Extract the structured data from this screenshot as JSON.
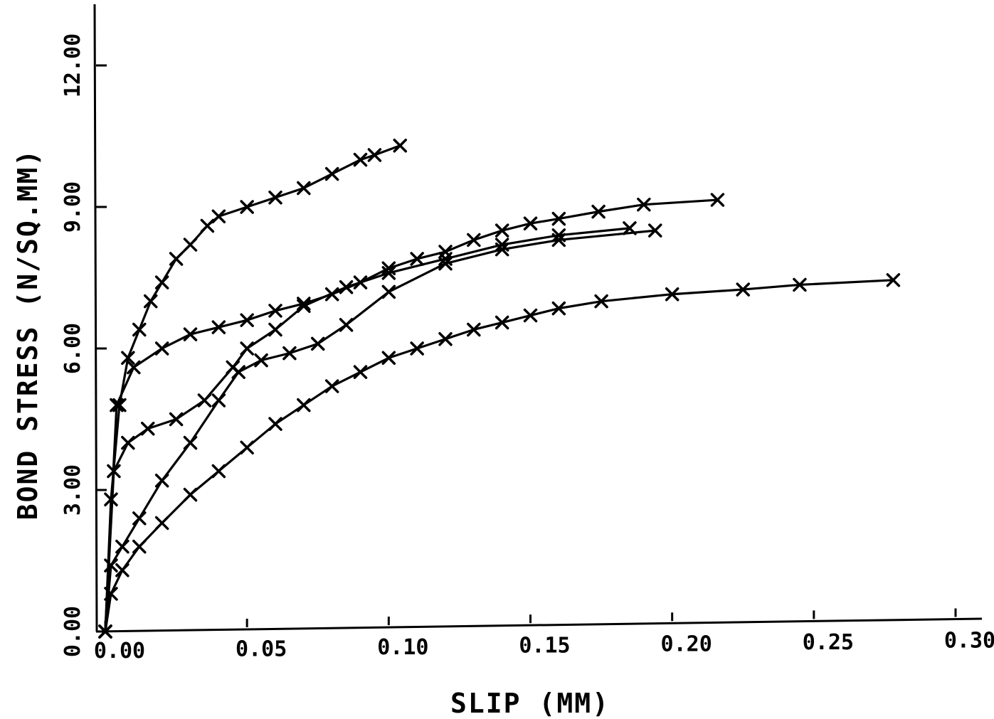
{
  "chart_data": {
    "type": "line",
    "title": "",
    "xlabel": "SLIP (MM)",
    "ylabel": "BOND STRESS (N/SQ.MM)",
    "xlim": [
      0.0,
      0.3
    ],
    "ylim": [
      0.0,
      12.0
    ],
    "x_ticks": [
      0.0,
      0.05,
      0.1,
      0.15,
      0.2,
      0.25,
      0.3
    ],
    "x_tick_labels": [
      "0.00",
      "0.05",
      "0.10",
      "0.15",
      "0.20",
      "0.25",
      "0.30"
    ],
    "y_ticks": [
      0,
      3,
      6,
      9,
      12
    ],
    "y_tick_labels": [
      "0.00",
      "3.00",
      "6.00",
      "9.00",
      "12.00"
    ],
    "grid": false,
    "marker": "x",
    "series": [
      {
        "x": [
          0,
          0.002,
          0.005,
          0.008,
          0.012,
          0.016,
          0.02,
          0.025,
          0.03,
          0.036,
          0.04,
          0.05,
          0.06,
          0.07,
          0.08,
          0.09,
          0.095,
          0.104
        ],
        "y": [
          0,
          2.8,
          4.8,
          5.8,
          6.4,
          7.0,
          7.4,
          7.9,
          8.2,
          8.6,
          8.8,
          9.0,
          9.2,
          9.4,
          9.7,
          10.0,
          10.1,
          10.3
        ]
      },
      {
        "x": [
          0,
          0.004,
          0.01,
          0.02,
          0.03,
          0.04,
          0.05,
          0.06,
          0.07,
          0.08,
          0.09,
          0.1,
          0.11,
          0.12,
          0.13,
          0.14,
          0.15,
          0.16,
          0.174,
          0.19,
          0.216
        ],
        "y": [
          0,
          4.8,
          5.6,
          6.0,
          6.3,
          6.45,
          6.6,
          6.8,
          6.95,
          7.15,
          7.4,
          7.7,
          7.9,
          8.05,
          8.3,
          8.5,
          8.65,
          8.75,
          8.9,
          9.05,
          9.15
        ]
      },
      {
        "x": [
          0,
          0.003,
          0.008,
          0.015,
          0.025,
          0.035,
          0.045,
          0.05,
          0.06,
          0.07,
          0.085,
          0.1,
          0.12,
          0.14,
          0.16,
          0.185
        ],
        "y": [
          0,
          3.4,
          4.0,
          4.3,
          4.5,
          4.9,
          5.6,
          6.0,
          6.4,
          6.9,
          7.3,
          7.6,
          7.9,
          8.2,
          8.4,
          8.55
        ]
      },
      {
        "x": [
          0,
          0.002,
          0.006,
          0.012,
          0.02,
          0.03,
          0.04,
          0.047,
          0.055,
          0.065,
          0.075,
          0.085,
          0.1,
          0.12,
          0.14,
          0.16,
          0.194
        ],
        "y": [
          0,
          1.4,
          1.8,
          2.4,
          3.2,
          4.0,
          4.9,
          5.5,
          5.75,
          5.9,
          6.1,
          6.5,
          7.2,
          7.8,
          8.1,
          8.3,
          8.5
        ]
      },
      {
        "x": [
          0,
          0.002,
          0.006,
          0.012,
          0.02,
          0.03,
          0.04,
          0.05,
          0.06,
          0.07,
          0.08,
          0.09,
          0.1,
          0.11,
          0.12,
          0.13,
          0.14,
          0.15,
          0.16,
          0.175,
          0.2,
          0.225,
          0.245,
          0.278
        ],
        "y": [
          0,
          0.8,
          1.3,
          1.8,
          2.3,
          2.9,
          3.4,
          3.9,
          4.4,
          4.8,
          5.2,
          5.5,
          5.8,
          6.0,
          6.2,
          6.4,
          6.55,
          6.7,
          6.85,
          7.0,
          7.15,
          7.25,
          7.35,
          7.45
        ]
      }
    ]
  }
}
